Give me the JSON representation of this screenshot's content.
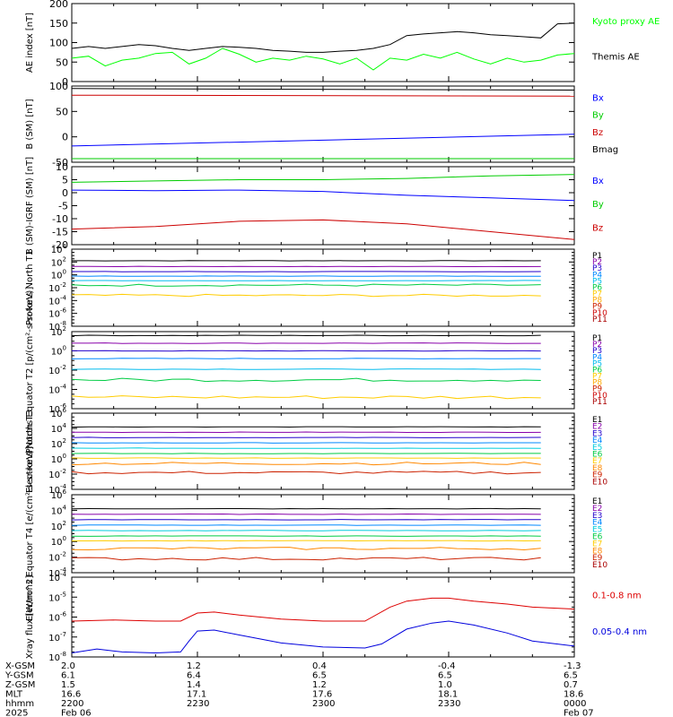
{
  "chart_data": [
    {
      "type": "line",
      "ylabel": "AE index [nT]",
      "ylim": [
        0,
        200
      ],
      "yticks": [
        "200",
        "150",
        "100",
        "50",
        "0"
      ],
      "legend": [
        {
          "label": "Kyoto proxy AE",
          "color": "#00ff00"
        },
        {
          "label": "Themis AE",
          "color": "#000000"
        }
      ],
      "series": [
        {
          "name": "Kyoto proxy AE",
          "color": "#00ff00",
          "x": [
            0,
            2,
            4,
            6,
            8,
            10,
            12,
            14,
            16,
            18,
            20,
            22,
            24,
            26,
            28,
            30,
            32,
            34,
            36,
            38,
            40,
            42,
            44,
            46,
            48,
            50,
            52,
            54,
            56,
            58,
            60
          ],
          "values": [
            60,
            65,
            40,
            55,
            60,
            72,
            75,
            45,
            60,
            85,
            70,
            50,
            60,
            55,
            65,
            58,
            45,
            60,
            30,
            60,
            55,
            70,
            60,
            75,
            58,
            45,
            60,
            50,
            55,
            68,
            72
          ]
        },
        {
          "name": "Themis AE",
          "color": "#000000",
          "x": [
            0,
            2,
            4,
            6,
            8,
            10,
            12,
            14,
            16,
            18,
            20,
            22,
            24,
            26,
            28,
            30,
            32,
            34,
            36,
            38,
            40,
            42,
            44,
            46,
            48,
            50,
            52,
            54,
            56,
            58,
            60
          ],
          "values": [
            85,
            90,
            85,
            90,
            95,
            92,
            85,
            80,
            85,
            90,
            88,
            85,
            80,
            78,
            75,
            75,
            78,
            80,
            85,
            95,
            118,
            122,
            125,
            128,
            125,
            120,
            118,
            115,
            112,
            148,
            150
          ]
        }
      ]
    },
    {
      "type": "line",
      "ylabel": "B (SM) [nT]",
      "ylim": [
        -50,
        100
      ],
      "yticks": [
        "100",
        "50",
        "0",
        "-50"
      ],
      "legend": [
        {
          "label": "Bx",
          "color": "#0000ff"
        },
        {
          "label": "By",
          "color": "#00cc00"
        },
        {
          "label": "Bz",
          "color": "#cc0000"
        },
        {
          "label": "Bmag",
          "color": "#000000"
        }
      ],
      "series": [
        {
          "name": "Bmag",
          "color": "#000000",
          "x": [
            0,
            60
          ],
          "values": [
            95,
            92
          ]
        },
        {
          "name": "Bz",
          "color": "#cc0000",
          "x": [
            0,
            60
          ],
          "values": [
            82,
            80
          ]
        },
        {
          "name": "Bx",
          "color": "#0000ff",
          "x": [
            0,
            60
          ],
          "values": [
            -18,
            5
          ]
        },
        {
          "name": "By",
          "color": "#00cc00",
          "x": [
            0,
            60
          ],
          "values": [
            -43,
            -43
          ]
        }
      ]
    },
    {
      "type": "line",
      "ylabel": "B (SM)-IGRF (SM) [nT]",
      "ylim": [
        -20,
        10
      ],
      "yticks": [
        "10",
        "5",
        "0",
        "-5",
        "-10",
        "-15",
        "-20"
      ],
      "legend": [
        {
          "label": "Bx",
          "color": "#0000ff"
        },
        {
          "label": "By",
          "color": "#00cc00"
        },
        {
          "label": "Bz",
          "color": "#cc0000"
        }
      ],
      "series": [
        {
          "name": "By",
          "color": "#00cc00",
          "x": [
            0,
            10,
            20,
            30,
            40,
            50,
            60
          ],
          "values": [
            4,
            4.5,
            5,
            5,
            5.5,
            6.5,
            7
          ]
        },
        {
          "name": "Bx",
          "color": "#0000ff",
          "x": [
            0,
            10,
            20,
            30,
            40,
            50,
            60
          ],
          "values": [
            1,
            0.8,
            1,
            0.5,
            -1,
            -2,
            -3
          ]
        },
        {
          "name": "Bz",
          "color": "#cc0000",
          "x": [
            0,
            10,
            20,
            30,
            40,
            50,
            60
          ],
          "values": [
            -14,
            -13,
            -11,
            -10.5,
            -12,
            -15,
            -18
          ]
        }
      ]
    },
    {
      "type": "line",
      "ylabel": "Protons North T1",
      "log": true,
      "ylim": [
        -8,
        4
      ],
      "yticks": [
        {
          "b": "10",
          "e": "4"
        },
        {
          "b": "10",
          "e": "2"
        },
        {
          "b": "10",
          "e": "0"
        },
        {
          "b": "10",
          "e": "-2"
        },
        {
          "b": "10",
          "e": "-4"
        },
        {
          "b": "10",
          "e": "-6"
        },
        {
          "b": "10",
          "e": "-8"
        }
      ],
      "channel_levels_log10": [
        2.2,
        1.3,
        0.5,
        -0.2,
        -0.9,
        -1.6,
        -3.2
      ],
      "legend": [
        {
          "label": "P1",
          "color": "#000000"
        },
        {
          "label": "P2",
          "color": "#8800aa"
        },
        {
          "label": "P3",
          "color": "#2200cc"
        },
        {
          "label": "P4",
          "color": "#0088ff"
        },
        {
          "label": "P5",
          "color": "#00bbee"
        },
        {
          "label": "P6",
          "color": "#00cc44"
        },
        {
          "label": "P7",
          "color": "#ffcc00"
        },
        {
          "label": "P8",
          "color": "#ffaa00"
        },
        {
          "label": "P9",
          "color": "#cc2200"
        },
        {
          "label": "P10",
          "color": "#cc0000"
        },
        {
          "label": "P11",
          "color": "#aa0000"
        }
      ]
    },
    {
      "type": "line",
      "ylabel": "Protons Equator T2 [p/(cm²-s-sr-keV)]",
      "log": true,
      "ylim": [
        -6,
        2
      ],
      "yticks": [
        {
          "b": "10",
          "e": "2"
        },
        {
          "b": "10",
          "e": "0"
        },
        {
          "b": "10",
          "e": "-2"
        },
        {
          "b": "10",
          "e": "-4"
        },
        {
          "b": "10",
          "e": "-6"
        }
      ],
      "channel_levels_log10": [
        1.6,
        0.8,
        0.0,
        -0.8,
        -1.9,
        -3.0,
        -4.8
      ],
      "legend": [
        {
          "label": "P1",
          "color": "#000000"
        },
        {
          "label": "P2",
          "color": "#8800aa"
        },
        {
          "label": "P3",
          "color": "#2200cc"
        },
        {
          "label": "P4",
          "color": "#0088ff"
        },
        {
          "label": "P5",
          "color": "#00bbee"
        },
        {
          "label": "P6",
          "color": "#00cc44"
        },
        {
          "label": "P7",
          "color": "#ffcc00"
        },
        {
          "label": "P8",
          "color": "#ffaa00"
        },
        {
          "label": "P9",
          "color": "#cc2200"
        },
        {
          "label": "P10",
          "color": "#cc0000"
        },
        {
          "label": "P11",
          "color": "#aa0000"
        }
      ]
    },
    {
      "type": "line",
      "ylabel": "Electrons North T3",
      "log": true,
      "ylim": [
        -4,
        6
      ],
      "yticks": [
        {
          "b": "10",
          "e": "6"
        },
        {
          "b": "10",
          "e": "4"
        },
        {
          "b": "10",
          "e": "2"
        },
        {
          "b": "10",
          "e": "0"
        },
        {
          "b": "10",
          "e": "-2"
        },
        {
          "b": "10",
          "e": "-4"
        }
      ],
      "channel_levels_log10": [
        4.2,
        3.5,
        2.8,
        2.1,
        1.4,
        0.7,
        0.1,
        -0.6,
        -1.8
      ],
      "legend": [
        {
          "label": "E1",
          "color": "#000000"
        },
        {
          "label": "E2",
          "color": "#8800aa"
        },
        {
          "label": "E3",
          "color": "#2200cc"
        },
        {
          "label": "E4",
          "color": "#0088ff"
        },
        {
          "label": "E5",
          "color": "#00ccdd"
        },
        {
          "label": "E6",
          "color": "#00cc44"
        },
        {
          "label": "E7",
          "color": "#ffcc00"
        },
        {
          "label": "E8",
          "color": "#ff8800"
        },
        {
          "label": "E9",
          "color": "#cc2200"
        },
        {
          "label": "E10",
          "color": "#aa0000"
        }
      ]
    },
    {
      "type": "line",
      "ylabel": "Electrons Equator T4 [e/(cm²-s-sr-keV)]",
      "log": true,
      "ylim": [
        -4,
        6
      ],
      "yticks": [
        {
          "b": "10",
          "e": "6"
        },
        {
          "b": "10",
          "e": "4"
        },
        {
          "b": "10",
          "e": "2"
        },
        {
          "b": "10",
          "e": "0"
        },
        {
          "b": "10",
          "e": "-2"
        },
        {
          "b": "10",
          "e": "-4"
        }
      ],
      "channel_levels_log10": [
        4.2,
        3.5,
        2.8,
        2.1,
        1.4,
        0.7,
        0.1,
        -0.9,
        -2.2
      ],
      "legend": [
        {
          "label": "E1",
          "color": "#000000"
        },
        {
          "label": "E2",
          "color": "#8800aa"
        },
        {
          "label": "E3",
          "color": "#2200cc"
        },
        {
          "label": "E4",
          "color": "#0088ff"
        },
        {
          "label": "E5",
          "color": "#00ccdd"
        },
        {
          "label": "E6",
          "color": "#00cc44"
        },
        {
          "label": "E7",
          "color": "#ffcc00"
        },
        {
          "label": "E8",
          "color": "#ff8800"
        },
        {
          "label": "E9",
          "color": "#cc2200"
        },
        {
          "label": "E10",
          "color": "#aa0000"
        }
      ]
    },
    {
      "type": "line",
      "ylabel": "Xray flux [W/m^2]",
      "log": true,
      "ylim": [
        -8,
        -4
      ],
      "yticks": [
        {
          "b": "10",
          "e": "-4"
        },
        {
          "b": "10",
          "e": "-5"
        },
        {
          "b": "10",
          "e": "-6"
        },
        {
          "b": "10",
          "e": "-7"
        },
        {
          "b": "10",
          "e": "-8"
        }
      ],
      "legend": [
        {
          "label": "0.1-0.8 nm",
          "color": "#dd0000"
        },
        {
          "label": "0.05-0.4 nm",
          "color": "#0000dd"
        }
      ],
      "series": [
        {
          "name": "0.1-0.8 nm",
          "color": "#dd0000",
          "x": [
            0,
            5,
            10,
            13,
            15,
            17,
            20,
            25,
            30,
            35,
            38,
            40,
            43,
            45,
            48,
            52,
            55,
            60
          ],
          "values": [
            -6.2,
            -6.15,
            -6.2,
            -6.2,
            -5.8,
            -5.75,
            -5.9,
            -6.1,
            -6.2,
            -6.2,
            -5.5,
            -5.2,
            -5.05,
            -5.05,
            -5.2,
            -5.35,
            -5.5,
            -5.6
          ]
        },
        {
          "name": "0.05-0.4 nm",
          "color": "#0000dd",
          "x": [
            0,
            3,
            6,
            10,
            13,
            14,
            15,
            17,
            20,
            25,
            30,
            35,
            37,
            40,
            43,
            45,
            48,
            52,
            55,
            60
          ],
          "values": [
            -7.8,
            -7.6,
            -7.75,
            -7.8,
            -7.75,
            -7.2,
            -6.7,
            -6.65,
            -6.9,
            -7.3,
            -7.5,
            -7.55,
            -7.35,
            -6.6,
            -6.3,
            -6.2,
            -6.4,
            -6.8,
            -7.2,
            -7.45
          ]
        }
      ]
    }
  ],
  "x_axis": {
    "row_labels": [
      "X-GSM",
      "Y-GSM",
      "Z-GSM",
      "MLT",
      "hhmm",
      "2025"
    ],
    "columns": [
      {
        "values": [
          "2.0",
          "6.1",
          "1.5",
          "16.6",
          "2200",
          "Feb 06"
        ]
      },
      {
        "values": [
          "1.2",
          "6.4",
          "1.4",
          "17.1",
          "2230",
          ""
        ]
      },
      {
        "values": [
          "0.4",
          "6.5",
          "1.2",
          "17.6",
          "2300",
          ""
        ]
      },
      {
        "values": [
          "-0.4",
          "6.5",
          "1.0",
          "18.1",
          "2330",
          ""
        ]
      },
      {
        "values": [
          "-1.3",
          "6.5",
          "0.7",
          "18.6",
          "0000",
          "Feb 07"
        ]
      }
    ]
  }
}
